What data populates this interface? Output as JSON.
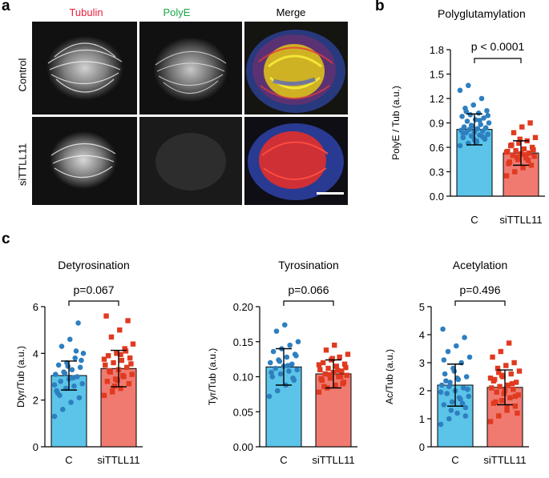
{
  "panel_labels": {
    "a": "a",
    "b": "b",
    "c": "c"
  },
  "panel_a": {
    "channels": [
      "Tubulin",
      "PolyE",
      "Merge"
    ],
    "rows": [
      "Control",
      "siTTLL11"
    ],
    "colors": {
      "tubulin": "#e8203c",
      "polye": "#1aa84a",
      "merge": "#000000"
    }
  },
  "colors": {
    "control": "#5bc4e8",
    "control_dots": "#2e7fc0",
    "sittll11": "#f07a70",
    "sittll11_dots": "#e03a20"
  },
  "chart_data": [
    {
      "type": "bar",
      "id": "polyglutamylation",
      "title": "Polyglutamylation",
      "categories": [
        "C",
        "siTTLL11"
      ],
      "values": [
        0.82,
        0.53
      ],
      "errors": [
        0.19,
        0.15
      ],
      "ylabel": "PolyE / Tub (a.u.)",
      "ylim": [
        0,
        1.8
      ],
      "yticks": [
        0.0,
        0.3,
        0.6,
        0.9,
        1.2,
        1.5,
        1.8
      ],
      "ytick_labels": [
        "0.0",
        "0.3",
        "0.6",
        "0.9",
        "1.2",
        "1.5",
        "1.8"
      ],
      "annotation": "p < 0.0001",
      "points": [
        [
          0.62,
          0.65,
          0.68,
          0.7,
          0.72,
          0.74,
          0.75,
          0.76,
          0.78,
          0.79,
          0.8,
          0.81,
          0.82,
          0.83,
          0.84,
          0.85,
          0.86,
          0.88,
          0.9,
          0.92,
          0.94,
          0.96,
          0.98,
          1.0,
          1.02,
          1.05,
          1.08,
          1.12,
          1.2,
          1.3,
          1.36,
          0.66,
          0.71,
          0.77,
          0.87,
          0.93,
          0.99,
          1.04,
          0.69,
          0.73
        ],
        [
          0.25,
          0.3,
          0.35,
          0.38,
          0.42,
          0.45,
          0.47,
          0.49,
          0.5,
          0.52,
          0.53,
          0.55,
          0.56,
          0.58,
          0.6,
          0.62,
          0.65,
          0.68,
          0.72,
          0.78,
          0.85,
          0.9,
          0.4,
          0.48,
          0.51,
          0.57,
          0.63,
          0.7,
          0.44,
          0.54
        ]
      ]
    },
    {
      "type": "bar",
      "id": "detyrosination",
      "title": "Detyrosination",
      "categories": [
        "C",
        "siTTLL11"
      ],
      "values": [
        3.05,
        3.35
      ],
      "errors": [
        0.62,
        0.78
      ],
      "ylabel": "Dtyr/Tub (a.u.)",
      "ylim": [
        0,
        6
      ],
      "yticks": [
        0,
        2,
        4,
        6
      ],
      "ytick_labels": [
        "0",
        "2",
        "4",
        "6"
      ],
      "annotation": "p=0.067",
      "points": [
        [
          1.3,
          1.6,
          1.9,
          2.1,
          2.3,
          2.5,
          2.6,
          2.7,
          2.8,
          2.9,
          3.0,
          3.1,
          3.2,
          3.3,
          3.4,
          3.5,
          3.6,
          3.8,
          4.0,
          4.3,
          4.6,
          5.3,
          2.4,
          3.15,
          2.95,
          3.7,
          2.2,
          3.45,
          4.1,
          2.65
        ],
        [
          2.2,
          2.4,
          2.5,
          2.7,
          2.8,
          2.9,
          3.0,
          3.1,
          3.2,
          3.3,
          3.4,
          3.5,
          3.6,
          3.7,
          3.8,
          3.9,
          4.0,
          4.2,
          4.4,
          4.7,
          5.0,
          5.4,
          5.6,
          2.6,
          3.05,
          3.55,
          3.25,
          2.85,
          4.1,
          3.75,
          2.35,
          3.95
        ]
      ]
    },
    {
      "type": "bar",
      "id": "tyrosination",
      "title": "Tyrosination",
      "categories": [
        "C",
        "siTTLL11"
      ],
      "values": [
        0.114,
        0.104
      ],
      "errors": [
        0.026,
        0.02
      ],
      "ylabel": "Tyr/Tub (a.u.)",
      "ylim": [
        0,
        0.2
      ],
      "yticks": [
        0.0,
        0.05,
        0.1,
        0.15,
        0.2
      ],
      "ytick_labels": [
        "0.00",
        "0.05",
        "0.10",
        "0.15",
        "0.20"
      ],
      "annotation": "p=0.066",
      "points": [
        [
          0.072,
          0.08,
          0.088,
          0.095,
          0.1,
          0.104,
          0.108,
          0.11,
          0.112,
          0.115,
          0.118,
          0.12,
          0.124,
          0.128,
          0.132,
          0.136,
          0.14,
          0.145,
          0.15,
          0.165,
          0.174,
          0.098,
          0.106,
          0.122,
          0.116,
          0.13
        ],
        [
          0.078,
          0.084,
          0.088,
          0.092,
          0.095,
          0.098,
          0.1,
          0.102,
          0.104,
          0.106,
          0.108,
          0.11,
          0.112,
          0.115,
          0.118,
          0.12,
          0.124,
          0.128,
          0.132,
          0.138,
          0.145,
          0.09,
          0.097,
          0.103,
          0.109,
          0.113,
          0.086,
          0.126,
          0.1,
          0.117
        ]
      ]
    },
    {
      "type": "bar",
      "id": "acetylation",
      "title": "Acetylation",
      "categories": [
        "C",
        "siTTLL11"
      ],
      "values": [
        2.2,
        2.12
      ],
      "errors": [
        0.75,
        0.62
      ],
      "ylabel": "Ac/Tub (a.u.)",
      "ylim": [
        0,
        5
      ],
      "yticks": [
        0,
        1,
        2,
        3,
        4,
        5
      ],
      "ytick_labels": [
        "0",
        "1",
        "2",
        "3",
        "4",
        "5"
      ],
      "annotation": "p=0.496",
      "points": [
        [
          0.8,
          1.0,
          1.2,
          1.4,
          1.5,
          1.6,
          1.7,
          1.8,
          1.9,
          2.0,
          2.1,
          2.2,
          2.3,
          2.4,
          2.5,
          2.6,
          2.8,
          3.0,
          3.2,
          3.4,
          3.6,
          3.9,
          4.2,
          1.3,
          1.75,
          2.05,
          2.35,
          2.7,
          1.55,
          1.95,
          2.15,
          2.45,
          1.1,
          3.1
        ],
        [
          0.9,
          1.1,
          1.3,
          1.45,
          1.55,
          1.65,
          1.75,
          1.85,
          1.95,
          2.0,
          2.05,
          2.1,
          2.15,
          2.2,
          2.3,
          2.4,
          2.5,
          2.6,
          2.7,
          2.8,
          2.9,
          3.0,
          3.2,
          3.4,
          3.7,
          1.2,
          1.6,
          1.9,
          2.25,
          2.45,
          2.65,
          1.4,
          1.8,
          2.35,
          2.55
        ]
      ]
    }
  ]
}
